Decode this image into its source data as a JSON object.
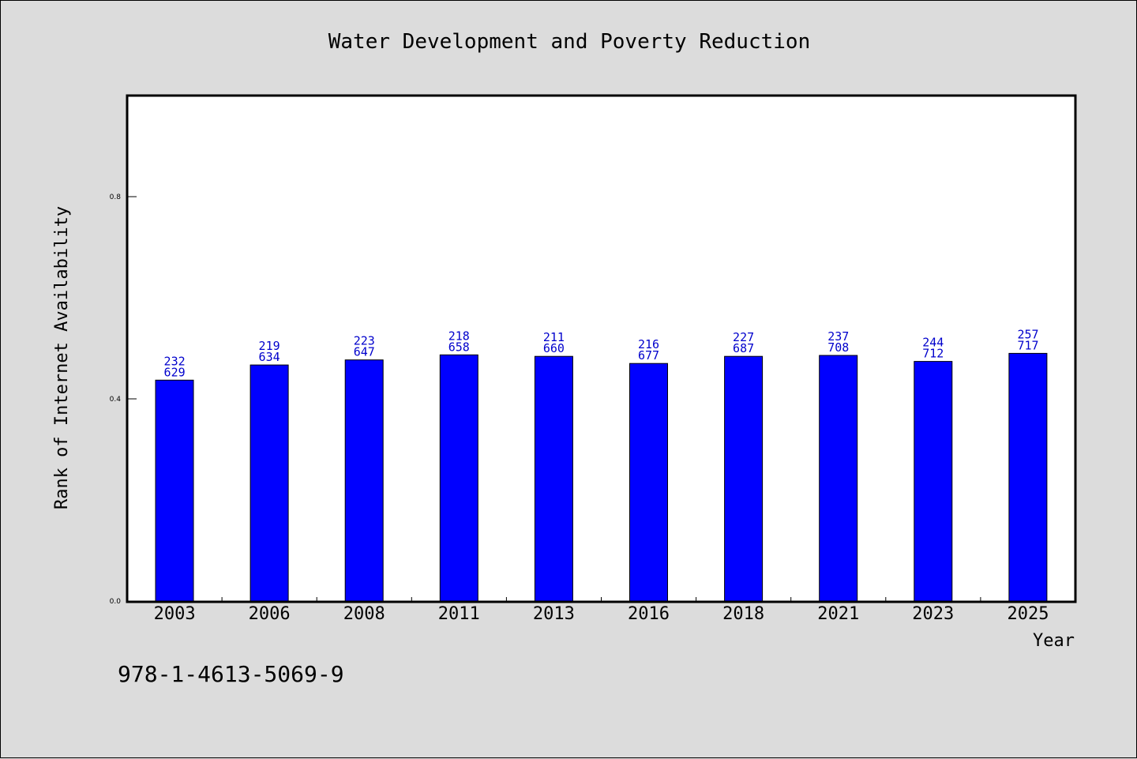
{
  "chart_data": {
    "type": "bar",
    "title": "Water Development and Poverty Reduction",
    "xlabel": "Year",
    "ylabel": "Rank of Internet Availability",
    "categories": [
      "2003",
      "2006",
      "2008",
      "2011",
      "2013",
      "2016",
      "2018",
      "2021",
      "2023",
      "2025"
    ],
    "values": [
      0.437,
      0.467,
      0.477,
      0.487,
      0.484,
      0.47,
      0.484,
      0.486,
      0.474,
      0.49
    ],
    "data_labels": [
      [
        "232",
        "629"
      ],
      [
        "219",
        "634"
      ],
      [
        "223",
        "647"
      ],
      [
        "218",
        "658"
      ],
      [
        "211",
        "660"
      ],
      [
        "216",
        "677"
      ],
      [
        "227",
        "687"
      ],
      [
        "237",
        "708"
      ],
      [
        "244",
        "712"
      ],
      [
        "257",
        "717"
      ]
    ],
    "ylim": [
      0,
      1.0
    ],
    "yticks": [
      "0.0",
      "0.4",
      "0.8"
    ],
    "grid": false,
    "bar_color": "#0000ff",
    "label_color": "#0000cc",
    "background_color": "#dcdcdc",
    "plot_background_color": "#ffffff"
  },
  "footer": {
    "isbn": "978-1-4613-5069-9"
  }
}
